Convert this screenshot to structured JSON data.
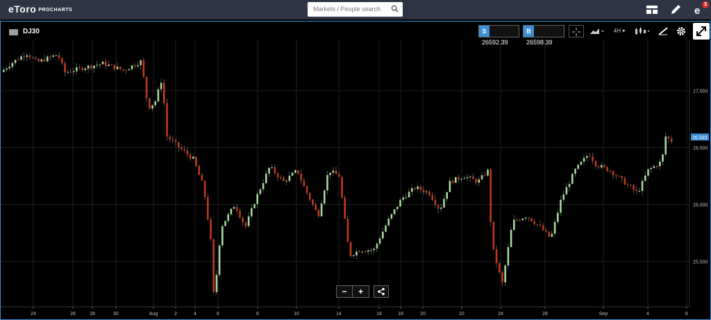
{
  "topbar": {
    "logo_text": "eToro",
    "logo_sub": "PROCHARTS",
    "search_placeholder": "Markets / People search",
    "notifications_count": "3"
  },
  "chart_header": {
    "symbol": "DJ30",
    "sell_label": "S",
    "sell_price": "26592.39",
    "buy_label": "B",
    "buy_price": "26598.39",
    "timeframe": "4H"
  },
  "chart_data": {
    "type": "candlestick",
    "y_ticks": [
      "27,000",
      "26,500",
      "26,000",
      "25,500"
    ],
    "y_tick_values": [
      27000,
      26500,
      26000,
      25500
    ],
    "current_price_label": "26,593",
    "current_price": 26593,
    "x_ticks": [
      "24",
      "26",
      "28",
      "30",
      "Aug",
      "2",
      "4",
      "6",
      "8",
      "10",
      "14",
      "16",
      "18",
      "20",
      "22",
      "24",
      "28",
      "Sep",
      "4",
      "6"
    ],
    "ylim": [
      25100,
      27450
    ],
    "grid": true,
    "colors": {
      "up": "#a8d8a0",
      "down": "#c2391b",
      "grid": "#1f1f1f"
    }
  },
  "zoom": {
    "minus": "−",
    "plus": "+"
  }
}
